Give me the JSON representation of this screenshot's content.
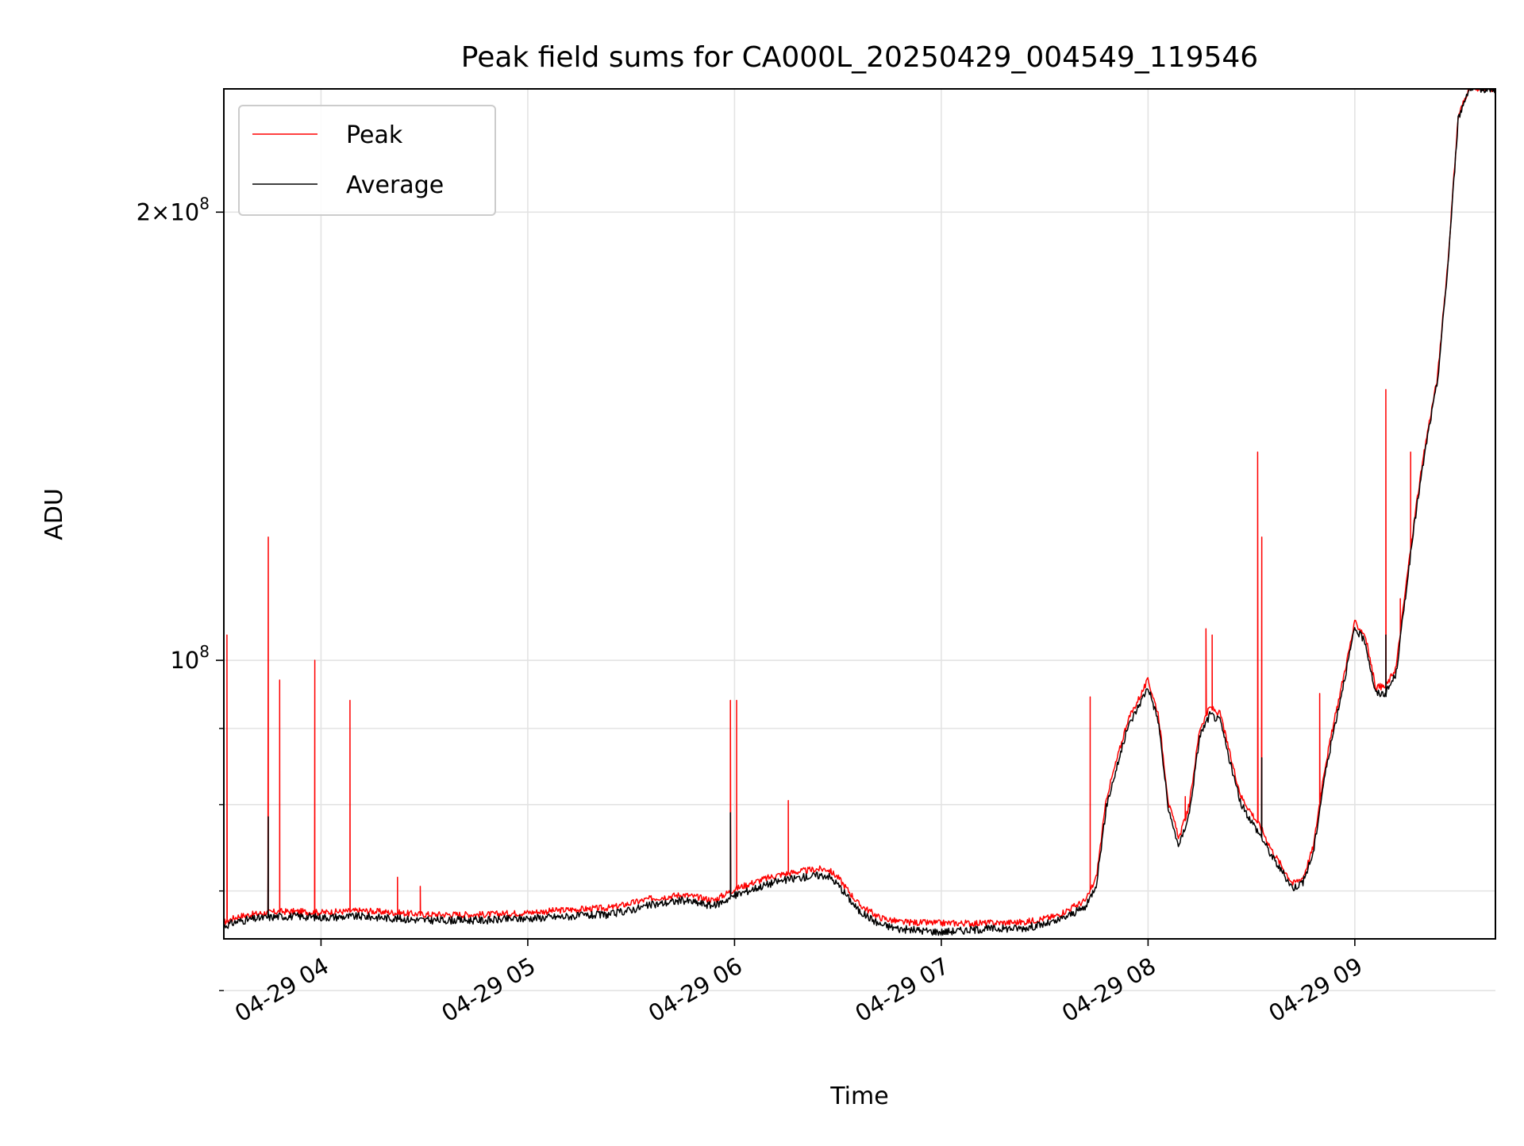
{
  "chart_data": {
    "type": "line",
    "title": "Peak field sums for CA000L_20250429_004549_119546",
    "xlabel": "Time",
    "ylabel": "ADU",
    "x_ticks": [
      {
        "label": "04-29 04",
        "value": 4.0
      },
      {
        "label": "04-29 05",
        "value": 5.0
      },
      {
        "label": "04-29 06",
        "value": 6.0
      },
      {
        "label": "04-29 07",
        "value": 7.0
      },
      {
        "label": "04-29 08",
        "value": 8.0
      },
      {
        "label": "04-29 09",
        "value": 9.0
      }
    ],
    "y_ticks_major": [
      {
        "base": "10",
        "exp": "8",
        "prefix": "",
        "value": 100000000
      },
      {
        "base": "10",
        "exp": "8",
        "prefix": "2×",
        "value": 200000000
      }
    ],
    "y_ticks_minor": [
      60000000,
      70000000,
      80000000,
      90000000
    ],
    "xlim": [
      3.53,
      9.68
    ],
    "ylim": [
      65000000,
      242000000
    ],
    "y_scale": "log",
    "grid": true,
    "legend_position": "upper-left",
    "series": [
      {
        "name": "Peak",
        "color": "#ff0000",
        "x": [
          3.53,
          3.6,
          3.7,
          3.8,
          3.9,
          4.0,
          4.2,
          4.5,
          4.8,
          5.0,
          5.2,
          5.4,
          5.6,
          5.75,
          5.9,
          6.0,
          6.1,
          6.2,
          6.3,
          6.4,
          6.45,
          6.5,
          6.6,
          6.7,
          6.8,
          7.0,
          7.2,
          7.4,
          7.55,
          7.7,
          7.75,
          7.8,
          7.9,
          8.0,
          8.05,
          8.1,
          8.15,
          8.2,
          8.25,
          8.3,
          8.35,
          8.4,
          8.45,
          8.5,
          8.55,
          8.6,
          8.7,
          8.75,
          8.8,
          8.85,
          8.9,
          9.0,
          9.05,
          9.1,
          9.15,
          9.2,
          9.25,
          9.3,
          9.35,
          9.4,
          9.45,
          9.5,
          9.55,
          9.68
        ],
        "y": [
          66700000,
          67300000,
          67600000,
          67800000,
          67800000,
          67700000,
          67900000,
          67500000,
          67500000,
          67700000,
          68000000,
          68200000,
          69200000,
          69600000,
          69000000,
          70200000,
          71000000,
          71700000,
          72100000,
          72400000,
          72400000,
          71500000,
          68600000,
          67200000,
          66700000,
          66600000,
          66600000,
          66700000,
          67300000,
          69000000,
          71500000,
          81000000,
          91000000,
          97000000,
          92000000,
          80000000,
          76000000,
          80000000,
          90000000,
          93000000,
          92000000,
          86000000,
          81000000,
          79000000,
          77000000,
          74500000,
          70800000,
          71500000,
          75000000,
          84000000,
          91000000,
          106000000,
          104000000,
          96000000,
          96000000,
          99000000,
          113000000,
          128000000,
          142000000,
          155000000,
          185000000,
          232000000,
          242000000,
          242000000
        ]
      },
      {
        "name": "Average",
        "color": "#000000",
        "x": [
          3.53,
          3.6,
          3.7,
          3.8,
          3.9,
          4.0,
          4.2,
          4.5,
          4.8,
          5.0,
          5.2,
          5.4,
          5.6,
          5.75,
          5.9,
          6.0,
          6.1,
          6.2,
          6.3,
          6.4,
          6.45,
          6.5,
          6.6,
          6.7,
          6.8,
          7.0,
          7.2,
          7.4,
          7.55,
          7.7,
          7.75,
          7.8,
          7.9,
          8.0,
          8.05,
          8.1,
          8.15,
          8.2,
          8.25,
          8.3,
          8.35,
          8.4,
          8.45,
          8.5,
          8.55,
          8.6,
          8.7,
          8.75,
          8.8,
          8.85,
          8.9,
          9.0,
          9.05,
          9.1,
          9.15,
          9.2,
          9.25,
          9.3,
          9.35,
          9.4,
          9.45,
          9.5,
          9.55,
          9.68
        ],
        "y": [
          66300000,
          66800000,
          67100000,
          67300000,
          67300000,
          67200000,
          67300000,
          66900000,
          66900000,
          67100000,
          67300000,
          67500000,
          68500000,
          69000000,
          68400000,
          69500000,
          70300000,
          71000000,
          71400000,
          71700000,
          71700000,
          70700000,
          67900000,
          66500000,
          66000000,
          65700000,
          66000000,
          66100000,
          66700000,
          68300000,
          70800000,
          80000000,
          90000000,
          96000000,
          91000000,
          79000000,
          75000000,
          79000000,
          89000000,
          92000000,
          91000000,
          85000000,
          80000000,
          78000000,
          76000000,
          73800000,
          70300000,
          71000000,
          74300000,
          83000000,
          90000000,
          105000000,
          103000000,
          95000000,
          95000000,
          98000000,
          112000000,
          127000000,
          141000000,
          154000000,
          184000000,
          231000000,
          242000000,
          242000000
        ]
      }
    ],
    "peak_spikes": [
      {
        "x": 3.545,
        "y": 104000000
      },
      {
        "x": 3.745,
        "y": 121000000
      },
      {
        "x": 3.8,
        "y": 97000000
      },
      {
        "x": 3.97,
        "y": 100000000
      },
      {
        "x": 4.14,
        "y": 94000000
      },
      {
        "x": 4.37,
        "y": 71500000
      },
      {
        "x": 4.48,
        "y": 70500000
      },
      {
        "x": 5.98,
        "y": 94000000
      },
      {
        "x": 6.01,
        "y": 94000000
      },
      {
        "x": 6.26,
        "y": 80500000
      },
      {
        "x": 7.72,
        "y": 94500000
      },
      {
        "x": 8.18,
        "y": 81000000
      },
      {
        "x": 8.28,
        "y": 105000000
      },
      {
        "x": 8.31,
        "y": 104000000
      },
      {
        "x": 8.53,
        "y": 138000000
      },
      {
        "x": 8.55,
        "y": 121000000
      },
      {
        "x": 8.83,
        "y": 95000000
      },
      {
        "x": 9.15,
        "y": 152000000
      },
      {
        "x": 9.22,
        "y": 110000000
      },
      {
        "x": 9.27,
        "y": 138000000
      }
    ],
    "avg_spikes": [
      {
        "x": 3.745,
        "y": 78500000
      },
      {
        "x": 5.98,
        "y": 79000000
      },
      {
        "x": 8.55,
        "y": 86000000
      },
      {
        "x": 9.15,
        "y": 104000000
      }
    ]
  }
}
